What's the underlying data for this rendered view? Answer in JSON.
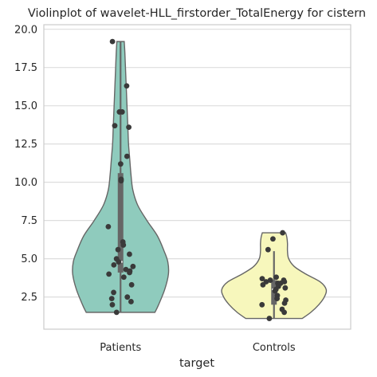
{
  "chart_data": {
    "type": "violin",
    "title": "Violinplot of wavelet-HLL_firstorder_TotalEnergy for cistern",
    "xlabel": "target",
    "ylabel": "",
    "categories": [
      "Patients",
      "Controls"
    ],
    "ylim": [
      0.4,
      20.3
    ],
    "yticks": [
      2.5,
      5.0,
      7.5,
      10.0,
      12.5,
      15.0,
      17.5,
      20.0
    ],
    "ytick_labels": [
      "2.5",
      "5.0",
      "7.5",
      "10.0",
      "12.5",
      "15.0",
      "17.5",
      "20.0"
    ],
    "grid": true,
    "violins": [
      {
        "category": "Patients",
        "color": "#8fcbbd",
        "min": 1.5,
        "max": 19.2,
        "q1": 4.1,
        "median": 4.8,
        "q3": 10.6,
        "whisker_low": 1.5,
        "whisker_high": 19.2,
        "density": [
          [
            1.5,
            0.56
          ],
          [
            2.0,
            0.62
          ],
          [
            3.0,
            0.72
          ],
          [
            4.0,
            0.78
          ],
          [
            4.8,
            0.77
          ],
          [
            5.5,
            0.71
          ],
          [
            6.5,
            0.6
          ],
          [
            7.5,
            0.43
          ],
          [
            8.5,
            0.28
          ],
          [
            9.5,
            0.2
          ],
          [
            10.5,
            0.17
          ],
          [
            11.5,
            0.15
          ],
          [
            12.5,
            0.13
          ],
          [
            13.5,
            0.12
          ],
          [
            14.5,
            0.11
          ],
          [
            15.5,
            0.1
          ],
          [
            16.5,
            0.09
          ],
          [
            17.5,
            0.08
          ],
          [
            18.5,
            0.07
          ],
          [
            19.2,
            0.06
          ]
        ],
        "points": [
          19.2,
          16.3,
          14.6,
          14.6,
          13.7,
          13.6,
          11.7,
          11.2,
          10.2,
          10.1,
          7.1,
          6.1,
          5.9,
          5.6,
          5.3,
          5.0,
          4.8,
          4.6,
          4.5,
          4.3,
          4.2,
          4.1,
          4.0,
          3.8,
          3.3,
          2.8,
          2.5,
          2.4,
          2.2,
          2.0,
          1.5
        ]
      },
      {
        "category": "Controls",
        "color": "#f7f7bc",
        "min": 1.1,
        "max": 6.7,
        "q1": 2.0,
        "median": 3.0,
        "q3": 3.6,
        "whisker_low": 1.1,
        "whisker_high": 5.5,
        "density": [
          [
            1.1,
            0.46
          ],
          [
            1.5,
            0.6
          ],
          [
            2.0,
            0.73
          ],
          [
            2.5,
            0.82
          ],
          [
            3.0,
            0.85
          ],
          [
            3.5,
            0.75
          ],
          [
            4.0,
            0.52
          ],
          [
            4.5,
            0.33
          ],
          [
            5.0,
            0.24
          ],
          [
            5.5,
            0.22
          ],
          [
            6.0,
            0.22
          ],
          [
            6.4,
            0.21
          ],
          [
            6.7,
            0.19
          ]
        ],
        "points": [
          6.7,
          6.3,
          5.6,
          3.8,
          3.7,
          3.6,
          3.6,
          3.5,
          3.5,
          3.4,
          3.4,
          3.3,
          3.2,
          3.1,
          3.0,
          2.9,
          2.6,
          2.4,
          2.3,
          2.1,
          2.0,
          1.7,
          1.5,
          1.1
        ]
      }
    ]
  }
}
